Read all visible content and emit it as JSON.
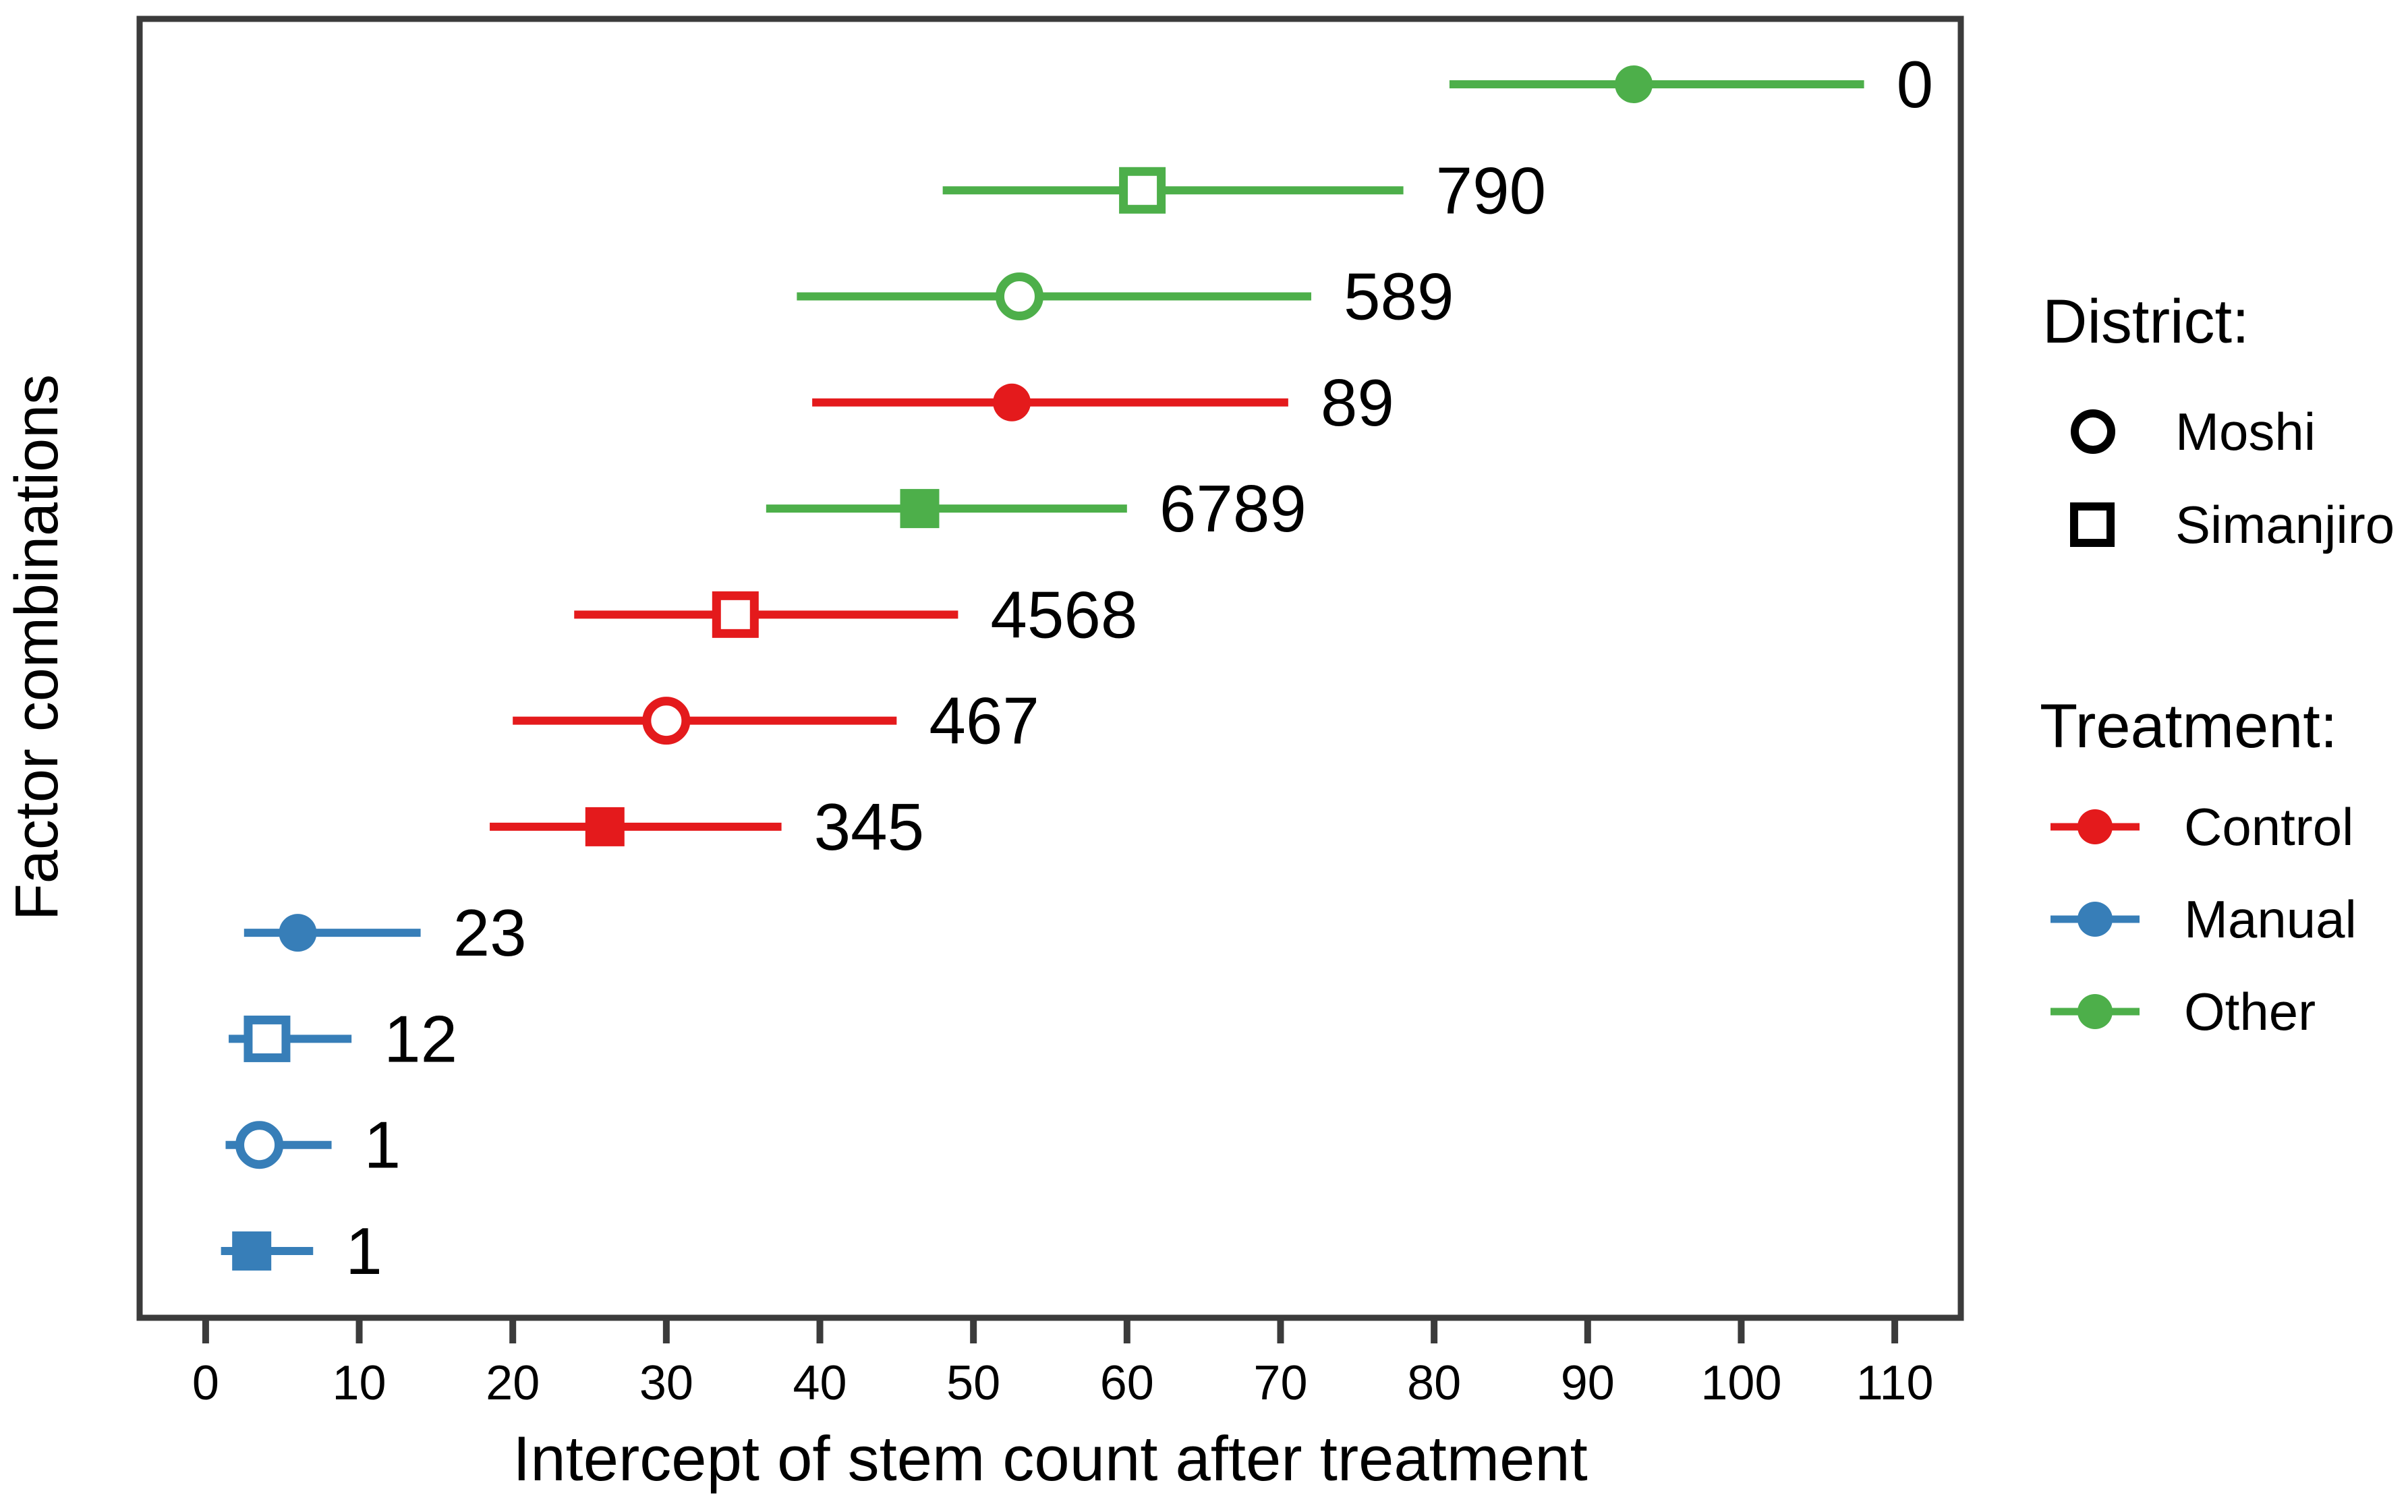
{
  "page": {
    "background": "#ffffff"
  },
  "chart_data": {
    "type": "dot-interval",
    "title": "",
    "xlabel": "Intercept of stem count after treatment",
    "ylabel": "Factor combinations",
    "x_axis": {
      "ticks": [
        0,
        10,
        20,
        30,
        40,
        50,
        60,
        70,
        80,
        90,
        100,
        110
      ],
      "min": -4.3,
      "max": 114.3,
      "grid": false
    },
    "y_axis": {
      "categories_top_to_bottom": [
        "0",
        "790",
        "589",
        "89",
        "6789",
        "4568",
        "467",
        "345",
        "23",
        "12",
        "1",
        "1"
      ]
    },
    "colors": {
      "Control": "#e41a1c",
      "Manual": "#377eb8",
      "Other": "#4daf4a",
      "frame": "#3b3b3b",
      "tick_text": "#1a1a1a"
    },
    "rows": [
      {
        "label": "0",
        "treatment": "Other",
        "district": "Moshi",
        "marker": "circle",
        "fill": "solid",
        "estimate": 93,
        "ci_low": 81,
        "ci_high": 108
      },
      {
        "label": "790",
        "treatment": "Other",
        "district": "Simanjiro",
        "marker": "square",
        "fill": "open",
        "estimate": 61,
        "ci_low": 48,
        "ci_high": 78
      },
      {
        "label": "589",
        "treatment": "Other",
        "district": "Moshi",
        "marker": "circle",
        "fill": "open",
        "estimate": 53,
        "ci_low": 38.5,
        "ci_high": 72
      },
      {
        "label": "89",
        "treatment": "Control",
        "district": "Moshi",
        "marker": "circle",
        "fill": "solid",
        "estimate": 52.5,
        "ci_low": 39.5,
        "ci_high": 70.5
      },
      {
        "label": "6789",
        "treatment": "Other",
        "district": "Simanjiro",
        "marker": "square",
        "fill": "solid",
        "estimate": 46.5,
        "ci_low": 36.5,
        "ci_high": 60
      },
      {
        "label": "4568",
        "treatment": "Control",
        "district": "Simanjiro",
        "marker": "square",
        "fill": "open",
        "estimate": 34.5,
        "ci_low": 24,
        "ci_high": 49
      },
      {
        "label": "467",
        "treatment": "Control",
        "district": "Moshi",
        "marker": "circle",
        "fill": "open",
        "estimate": 30,
        "ci_low": 20,
        "ci_high": 45
      },
      {
        "label": "345",
        "treatment": "Control",
        "district": "Simanjiro",
        "marker": "square",
        "fill": "solid",
        "estimate": 26,
        "ci_low": 18.5,
        "ci_high": 37.5
      },
      {
        "label": "23",
        "treatment": "Manual",
        "district": "Moshi",
        "marker": "circle",
        "fill": "solid",
        "estimate": 6,
        "ci_low": 2.5,
        "ci_high": 14
      },
      {
        "label": "12",
        "treatment": "Manual",
        "district": "Simanjiro",
        "marker": "square",
        "fill": "open",
        "estimate": 4,
        "ci_low": 1.5,
        "ci_high": 9.5
      },
      {
        "label": "1",
        "treatment": "Manual",
        "district": "Moshi",
        "marker": "circle",
        "fill": "open",
        "estimate": 3.5,
        "ci_low": 1.3,
        "ci_high": 8.2
      },
      {
        "label": "1",
        "treatment": "Manual",
        "district": "Simanjiro",
        "marker": "square",
        "fill": "solid",
        "estimate": 3,
        "ci_low": 1,
        "ci_high": 7
      }
    ],
    "legend": {
      "district": {
        "title": "District:",
        "items": [
          {
            "label": "Moshi",
            "marker": "circle"
          },
          {
            "label": "Simanjiro",
            "marker": "square"
          }
        ]
      },
      "treatment": {
        "title": "Treatment:",
        "items": [
          {
            "label": "Control",
            "color": "#e41a1c"
          },
          {
            "label": "Manual",
            "color": "#377eb8"
          },
          {
            "label": "Other",
            "color": "#4daf4a"
          }
        ]
      }
    }
  }
}
